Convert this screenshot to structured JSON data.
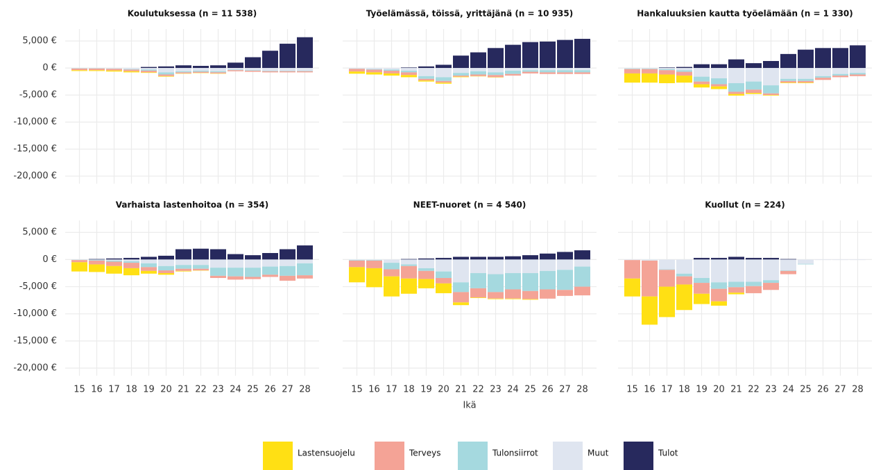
{
  "chart_data": [
    {
      "type": "bar",
      "stacked": true,
      "title": "Koulutuksessa (n = 11 538)",
      "categories": [
        "15",
        "16",
        "17",
        "18",
        "19",
        "20",
        "21",
        "22",
        "23",
        "24",
        "25",
        "26",
        "27",
        "28"
      ],
      "ylim": [
        -21400,
        7200
      ],
      "yticks": [
        {
          "value": 5000,
          "label": "5,000 €"
        },
        {
          "value": 0,
          "label": "0 €"
        },
        {
          "value": -5000,
          "label": "-5,000 €"
        },
        {
          "value": -10000,
          "label": "-10,000 €"
        },
        {
          "value": -15000,
          "label": "-15,000 €"
        },
        {
          "value": -20000,
          "label": "-20,000 €"
        }
      ],
      "grid": true,
      "series": [
        {
          "name": "Lastensuojelu",
          "color": "#ffe014",
          "values": [
            -150,
            -150,
            -200,
            -200,
            -100,
            -100,
            -50,
            -50,
            -50,
            0,
            0,
            0,
            0,
            0
          ]
        },
        {
          "name": "Terveys",
          "color": "#f4a396",
          "values": [
            -300,
            -300,
            -300,
            -300,
            -300,
            -300,
            -200,
            -200,
            -200,
            -200,
            -200,
            -200,
            -200,
            -200
          ]
        },
        {
          "name": "Tulonsiirrot",
          "color": "#a5d9df",
          "values": [
            -50,
            -50,
            -50,
            -100,
            -200,
            -400,
            -200,
            -200,
            -200,
            -100,
            -100,
            -100,
            -100,
            -100
          ]
        },
        {
          "name": "Muut",
          "color": "#dfe5f0",
          "values": [
            -50,
            -50,
            -100,
            -200,
            -300,
            -800,
            -600,
            -500,
            -600,
            -300,
            -400,
            -500,
            -500,
            -500
          ]
        },
        {
          "name": "Tulot",
          "color": "#27295d",
          "values": [
            0,
            0,
            0,
            0,
            200,
            300,
            500,
            400,
            500,
            1000,
            2000,
            3200,
            4500,
            5700
          ]
        }
      ]
    },
    {
      "type": "bar",
      "stacked": true,
      "title": "Työelämässä, töissä, yrittäjänä (n = 10 935)",
      "categories": [
        "15",
        "16",
        "17",
        "18",
        "19",
        "20",
        "21",
        "22",
        "23",
        "24",
        "25",
        "26",
        "27",
        "28"
      ],
      "ylim": [
        -21400,
        7200
      ],
      "yticks": [
        {
          "value": 5000,
          "label": "5,000 €"
        },
        {
          "value": 0,
          "label": "0 €"
        },
        {
          "value": -5000,
          "label": "-5,000 €"
        },
        {
          "value": -10000,
          "label": "-10,000 €"
        },
        {
          "value": -15000,
          "label": "-15,000 €"
        },
        {
          "value": -20000,
          "label": "-20,000 €"
        }
      ],
      "grid": true,
      "series": [
        {
          "name": "Lastensuojelu",
          "color": "#ffe014",
          "values": [
            -400,
            -400,
            -400,
            -400,
            -200,
            -200,
            -100,
            -50,
            -50,
            0,
            0,
            0,
            0,
            0
          ]
        },
        {
          "name": "Terveys",
          "color": "#f4a396",
          "values": [
            -500,
            -500,
            -500,
            -500,
            -300,
            -300,
            -200,
            -300,
            -400,
            -300,
            -300,
            -300,
            -300,
            -300
          ]
        },
        {
          "name": "Tulonsiirrot",
          "color": "#a5d9df",
          "values": [
            -50,
            -100,
            -200,
            -300,
            -500,
            -700,
            -500,
            -600,
            -500,
            -600,
            -300,
            -400,
            -400,
            -400
          ]
        },
        {
          "name": "Muut",
          "color": "#dfe5f0",
          "values": [
            -100,
            -200,
            -300,
            -500,
            -1500,
            -1700,
            -900,
            -600,
            -800,
            -500,
            -400,
            -400,
            -400,
            -400
          ]
        },
        {
          "name": "Tulot",
          "color": "#27295d",
          "values": [
            0,
            0,
            0,
            100,
            300,
            600,
            2300,
            2900,
            3700,
            4300,
            4800,
            4900,
            5200,
            5400
          ]
        }
      ]
    },
    {
      "type": "bar",
      "stacked": true,
      "title": "Hankaluuksien kautta työelämään (n = 1 330)",
      "categories": [
        "15",
        "16",
        "17",
        "18",
        "19",
        "20",
        "21",
        "22",
        "23",
        "24",
        "25",
        "26",
        "27",
        "28"
      ],
      "ylim": [
        -21400,
        7200
      ],
      "yticks": [
        {
          "value": 5000,
          "label": "5,000 €"
        },
        {
          "value": 0,
          "label": "0 €"
        },
        {
          "value": -5000,
          "label": "-5,000 €"
        },
        {
          "value": -10000,
          "label": "-10,000 €"
        },
        {
          "value": -15000,
          "label": "-15,000 €"
        },
        {
          "value": -20000,
          "label": "-20,000 €"
        }
      ],
      "grid": true,
      "series": [
        {
          "name": "Lastensuojelu",
          "color": "#ffe014",
          "values": [
            -1700,
            -1700,
            -1600,
            -1300,
            -600,
            -500,
            -300,
            -200,
            -100,
            -100,
            -100,
            0,
            0,
            0
          ]
        },
        {
          "name": "Terveys",
          "color": "#f4a396",
          "values": [
            -800,
            -800,
            -800,
            -700,
            -500,
            -400,
            -400,
            -600,
            -300,
            -300,
            -300,
            -400,
            -300,
            -300
          ]
        },
        {
          "name": "Tulonsiirrot",
          "color": "#a5d9df",
          "values": [
            -100,
            -100,
            -200,
            -300,
            -900,
            -1100,
            -1600,
            -1500,
            -1500,
            -400,
            -400,
            -300,
            -300,
            -300
          ]
        },
        {
          "name": "Muut",
          "color": "#dfe5f0",
          "values": [
            -100,
            -100,
            -200,
            -400,
            -1600,
            -1900,
            -2800,
            -2500,
            -3200,
            -2000,
            -2000,
            -1500,
            -1100,
            -900
          ]
        },
        {
          "name": "Tulot",
          "color": "#27295d",
          "values": [
            0,
            0,
            100,
            200,
            700,
            700,
            1600,
            900,
            1300,
            2600,
            3400,
            3700,
            3700,
            4200
          ]
        }
      ]
    },
    {
      "type": "bar",
      "stacked": true,
      "title": "Varhaista lastenhoitoa (n = 354)",
      "categories": [
        "15",
        "16",
        "17",
        "18",
        "19",
        "20",
        "21",
        "22",
        "23",
        "24",
        "25",
        "26",
        "27",
        "28"
      ],
      "ylim": [
        -21400,
        7200
      ],
      "yticks": [
        {
          "value": 5000,
          "label": "5,000 €"
        },
        {
          "value": 0,
          "label": "0 €"
        },
        {
          "value": -5000,
          "label": "-5,000 €"
        },
        {
          "value": -10000,
          "label": "-10,000 €"
        },
        {
          "value": -15000,
          "label": "-15,000 €"
        },
        {
          "value": -20000,
          "label": "-20,000 €"
        }
      ],
      "grid": true,
      "series": [
        {
          "name": "Lastensuojelu",
          "color": "#ffe014",
          "values": [
            -1700,
            -1400,
            -1400,
            -1300,
            -500,
            -300,
            -100,
            -50,
            0,
            0,
            0,
            0,
            0,
            0
          ]
        },
        {
          "name": "Terveys",
          "color": "#f4a396",
          "values": [
            -400,
            -700,
            -800,
            -1000,
            -700,
            -500,
            -400,
            -300,
            -400,
            -600,
            -400,
            -400,
            -900,
            -600
          ]
        },
        {
          "name": "Tulonsiirrot",
          "color": "#a5d9df",
          "values": [
            -50,
            -100,
            -200,
            -300,
            -700,
            -800,
            -700,
            -700,
            -1500,
            -1600,
            -1700,
            -1500,
            -1800,
            -2200
          ]
        },
        {
          "name": "Muut",
          "color": "#dfe5f0",
          "values": [
            -50,
            -100,
            -200,
            -300,
            -700,
            -1200,
            -1000,
            -1000,
            -1500,
            -1500,
            -1500,
            -1300,
            -1200,
            -700
          ]
        },
        {
          "name": "Tulot",
          "color": "#27295d",
          "values": [
            0,
            100,
            200,
            300,
            500,
            700,
            1900,
            2000,
            1900,
            1000,
            800,
            1200,
            1900,
            2600
          ]
        }
      ]
    },
    {
      "type": "bar",
      "stacked": true,
      "title": "NEET-nuoret (n = 4 540)",
      "xlabel": "Ikä",
      "categories": [
        "15",
        "16",
        "17",
        "18",
        "19",
        "20",
        "21",
        "22",
        "23",
        "24",
        "25",
        "26",
        "27",
        "28"
      ],
      "ylim": [
        -21400,
        7200
      ],
      "yticks": [
        {
          "value": 5000,
          "label": "5,000 €"
        },
        {
          "value": 0,
          "label": "0 €"
        },
        {
          "value": -5000,
          "label": "-5,000 €"
        },
        {
          "value": -10000,
          "label": "-10,000 €"
        },
        {
          "value": -15000,
          "label": "-15,000 €"
        },
        {
          "value": -20000,
          "label": "-20,000 €"
        }
      ],
      "grid": true,
      "series": [
        {
          "name": "Lastensuojelu",
          "color": "#ffe014",
          "values": [
            -2800,
            -3500,
            -3700,
            -2800,
            -1700,
            -1800,
            -500,
            -100,
            -100,
            -100,
            -100,
            0,
            0,
            0
          ]
        },
        {
          "name": "Terveys",
          "color": "#f4a396",
          "values": [
            -1200,
            -1400,
            -1300,
            -2300,
            -1500,
            -1000,
            -1900,
            -1700,
            -1200,
            -1700,
            -1500,
            -1700,
            -1100,
            -1600
          ]
        },
        {
          "name": "Tulonsiirrot",
          "color": "#a5d9df",
          "values": [
            -100,
            -100,
            -1200,
            -300,
            -500,
            -1200,
            -1800,
            -2800,
            -3300,
            -3000,
            -3300,
            -3400,
            -3700,
            -3700
          ]
        },
        {
          "name": "Muut",
          "color": "#dfe5f0",
          "values": [
            -100,
            -100,
            -600,
            -900,
            -1600,
            -2200,
            -4200,
            -2500,
            -2700,
            -2500,
            -2500,
            -2100,
            -1900,
            -1300
          ]
        },
        {
          "name": "Tulot",
          "color": "#27295d",
          "values": [
            0,
            0,
            0,
            100,
            200,
            300,
            500,
            500,
            500,
            600,
            800,
            1100,
            1400,
            1700
          ]
        }
      ]
    },
    {
      "type": "bar",
      "stacked": true,
      "title": "Kuollut (n = 224)",
      "categories": [
        "15",
        "16",
        "17",
        "18",
        "19",
        "20",
        "21",
        "22",
        "23",
        "24",
        "25",
        "26",
        "27",
        "28"
      ],
      "ylim": [
        -21400,
        7200
      ],
      "yticks": [
        {
          "value": 5000,
          "label": "5,000 €"
        },
        {
          "value": 0,
          "label": "0 €"
        },
        {
          "value": -5000,
          "label": "-5,000 €"
        },
        {
          "value": -10000,
          "label": "-10,000 €"
        },
        {
          "value": -15000,
          "label": "-15,000 €"
        },
        {
          "value": -20000,
          "label": "-20,000 €"
        }
      ],
      "grid": true,
      "series": [
        {
          "name": "Lastensuojelu",
          "color": "#ffe014",
          "values": [
            -3300,
            -5200,
            -5600,
            -4700,
            -1900,
            -800,
            -300,
            0,
            0,
            0,
            0,
            0,
            0,
            0
          ]
        },
        {
          "name": "Terveys",
          "color": "#f4a396",
          "values": [
            -3400,
            -6600,
            -3100,
            -1500,
            -2000,
            -2300,
            -1000,
            -1300,
            -1300,
            -600,
            0,
            0,
            0,
            0
          ]
        },
        {
          "name": "Tulonsiirrot",
          "color": "#a5d9df",
          "values": [
            0,
            0,
            -100,
            -500,
            -900,
            -1200,
            -1000,
            -800,
            -500,
            -100,
            -100,
            0,
            0,
            0
          ]
        },
        {
          "name": "Muut",
          "color": "#dfe5f0",
          "values": [
            -100,
            -200,
            -1800,
            -2600,
            -3400,
            -4200,
            -4100,
            -4100,
            -3800,
            -2000,
            -800,
            -100,
            -100,
            -100
          ]
        },
        {
          "name": "Tulot",
          "color": "#27295d",
          "values": [
            0,
            0,
            0,
            0,
            300,
            300,
            500,
            300,
            300,
            100,
            0,
            0,
            0,
            0
          ]
        }
      ]
    }
  ]
}
